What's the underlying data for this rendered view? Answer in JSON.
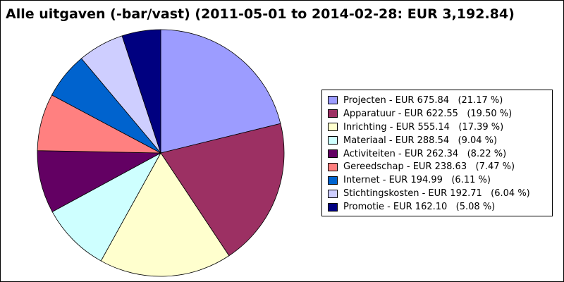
{
  "chart_data": {
    "type": "pie",
    "title": "Alle uitgaven (-bar/vast) (2011-05-01 to 2014-02-28: EUR 3,192.84)",
    "currency": "EUR",
    "legend_position": "right",
    "slices": [
      {
        "label": "Projecten",
        "value": 675.84,
        "value_text": "675.84",
        "percent": 21.17,
        "percent_text": "21.17 %",
        "color": "#9c9cff"
      },
      {
        "label": "Apparatuur",
        "value": 622.55,
        "value_text": "622.55",
        "percent": 19.5,
        "percent_text": "19.50 %",
        "color": "#9c3063"
      },
      {
        "label": "Inrichting",
        "value": 555.14,
        "value_text": "555.14",
        "percent": 17.39,
        "percent_text": "17.39 %",
        "color": "#ffffce"
      },
      {
        "label": "Materiaal",
        "value": 288.54,
        "value_text": "288.54",
        "percent": 9.04,
        "percent_text": "9.04 %",
        "color": "#ceffff"
      },
      {
        "label": "Activiteiten",
        "value": 262.34,
        "value_text": "262.34",
        "percent": 8.22,
        "percent_text": "8.22 %",
        "color": "#630063"
      },
      {
        "label": "Gereedschap",
        "value": 238.63,
        "value_text": "238.63",
        "percent": 7.47,
        "percent_text": "7.47 %",
        "color": "#ff8080"
      },
      {
        "label": "Internet",
        "value": 194.99,
        "value_text": "194.99",
        "percent": 6.11,
        "percent_text": "6.11 %",
        "color": "#0063ce"
      },
      {
        "label": "Stichtingskosten",
        "value": 192.71,
        "value_text": "192.71",
        "percent": 6.04,
        "percent_text": "6.04 %",
        "color": "#ceceff"
      },
      {
        "label": "Promotie",
        "value": 162.1,
        "value_text": "162.10",
        "percent": 5.08,
        "percent_text": "5.08 %",
        "color": "#000080"
      }
    ]
  }
}
